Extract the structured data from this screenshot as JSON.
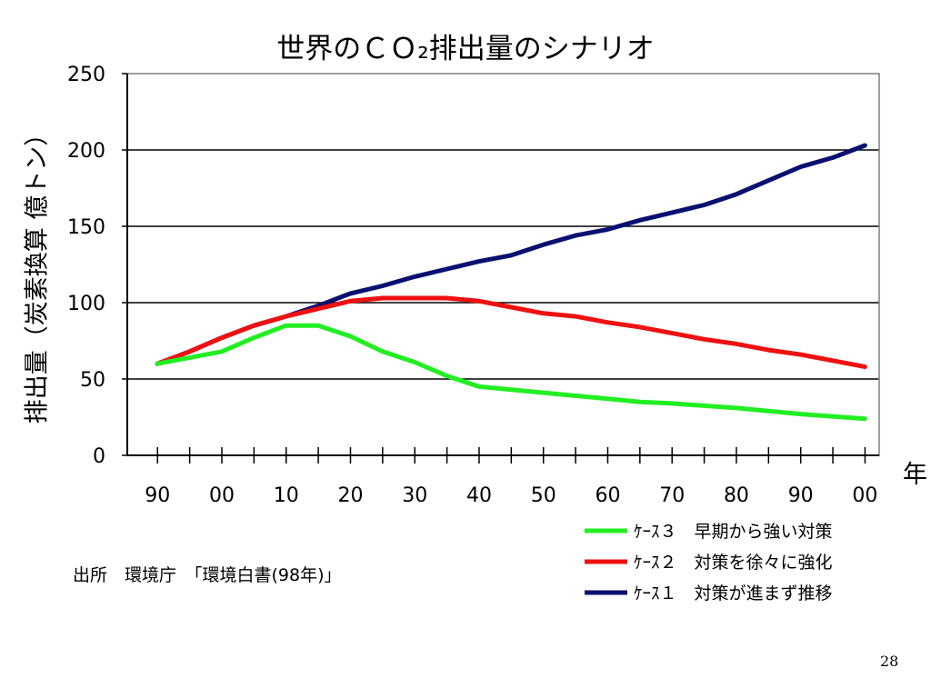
{
  "chart_data": {
    "type": "line",
    "title": "世界のＣＯ₂排出量のシナリオ",
    "ylabel": "排出量（炭素換算 億トン）",
    "xlabel": "年",
    "ylim": [
      0,
      250
    ],
    "yticks": [
      0,
      50,
      100,
      150,
      200,
      250
    ],
    "x": [
      1990,
      1995,
      2000,
      2005,
      2010,
      2015,
      2020,
      2025,
      2030,
      2035,
      2040,
      2045,
      2050,
      2055,
      2060,
      2065,
      2070,
      2075,
      2080,
      2085,
      2090,
      2095,
      2100
    ],
    "xtick_values": [
      1990,
      2000,
      2010,
      2020,
      2030,
      2040,
      2050,
      2060,
      2070,
      2080,
      2090,
      2100
    ],
    "xtick_labels": [
      "90",
      "00",
      "10",
      "20",
      "30",
      "40",
      "50",
      "60",
      "70",
      "80",
      "90",
      "00"
    ],
    "grid": "horizontal",
    "legend_position": "bottom-right",
    "series": [
      {
        "name": "ｹｰｽ３　早期から強い対策",
        "color": "#22ee22",
        "values": [
          60,
          68,
          77,
          85,
          85,
          78,
          68,
          61,
          52,
          45,
          41,
          37,
          35,
          34,
          31,
          29,
          27,
          24
        ],
        "x": [
          1990,
          2000,
          2005,
          2010,
          2015,
          2020,
          2025,
          2030,
          2035,
          2040,
          2050,
          2060,
          2065,
          2070,
          2080,
          2085,
          2090,
          2100
        ]
      },
      {
        "name": "ｹｰｽ２　対策を徐々に強化",
        "color": "#ee1111",
        "values": [
          60,
          68,
          77,
          85,
          91,
          96,
          101,
          103,
          103,
          103,
          101,
          97,
          93,
          91,
          87,
          84,
          80,
          76,
          73,
          69,
          66,
          62,
          58
        ],
        "x": [
          1990,
          1995,
          2000,
          2005,
          2010,
          2015,
          2020,
          2025,
          2030,
          2035,
          2040,
          2045,
          2050,
          2055,
          2060,
          2065,
          2070,
          2075,
          2080,
          2085,
          2090,
          2095,
          2100
        ]
      },
      {
        "name": "ｹｰｽ１　対策が進まず推移",
        "color": "#0a1070",
        "values": [
          60,
          68,
          77,
          85,
          91,
          98,
          106,
          111,
          117,
          122,
          127,
          131,
          138,
          144,
          148,
          154,
          159,
          164,
          171,
          180,
          189,
          195,
          203
        ],
        "x": [
          1990,
          1995,
          2000,
          2005,
          2010,
          2015,
          2020,
          2025,
          2030,
          2035,
          2040,
          2045,
          2050,
          2055,
          2060,
          2065,
          2070,
          2075,
          2080,
          2085,
          2090,
          2095,
          2100
        ]
      }
    ]
  },
  "source_note": "出所　環境庁　「環境白書(98年)」",
  "page_number": "28"
}
